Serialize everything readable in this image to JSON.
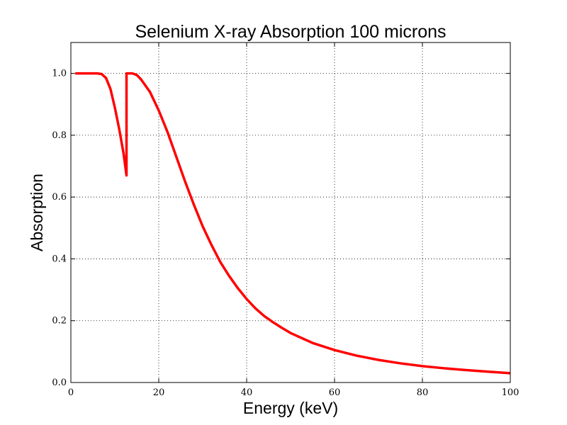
{
  "chart_data": {
    "type": "line",
    "title": "Selenium X-ray Absorption 100 microns",
    "xlabel": "Energy (keV)",
    "ylabel": "Absorption",
    "xlim": [
      0,
      100
    ],
    "ylim": [
      0,
      1.1
    ],
    "x_ticks": [
      "0",
      "20",
      "40",
      "60",
      "80",
      "100"
    ],
    "y_ticks": [
      "0.0",
      "0.2",
      "0.4",
      "0.6",
      "0.8",
      "1.0"
    ],
    "grid": true,
    "grid_style": "dotted",
    "legend": "none",
    "series": [
      {
        "color": "#ff0000",
        "points": [
          [
            1,
            1.0
          ],
          [
            4,
            1.0
          ],
          [
            6,
            1.0
          ],
          [
            7,
            0.998
          ],
          [
            8,
            0.985
          ],
          [
            9,
            0.95
          ],
          [
            10,
            0.89
          ],
          [
            11,
            0.82
          ],
          [
            12,
            0.74
          ],
          [
            12.66,
            0.67
          ],
          [
            12.66,
            1.0
          ],
          [
            14,
            1.0
          ],
          [
            15,
            0.995
          ],
          [
            16,
            0.98
          ],
          [
            18,
            0.94
          ],
          [
            20,
            0.88
          ],
          [
            22,
            0.81
          ],
          [
            24,
            0.73
          ],
          [
            26,
            0.65
          ],
          [
            28,
            0.575
          ],
          [
            30,
            0.505
          ],
          [
            32,
            0.445
          ],
          [
            34,
            0.39
          ],
          [
            36,
            0.345
          ],
          [
            38,
            0.305
          ],
          [
            40,
            0.27
          ],
          [
            42,
            0.24
          ],
          [
            44,
            0.215
          ],
          [
            46,
            0.195
          ],
          [
            48,
            0.177
          ],
          [
            50,
            0.16
          ],
          [
            55,
            0.128
          ],
          [
            60,
            0.105
          ],
          [
            65,
            0.087
          ],
          [
            70,
            0.073
          ],
          [
            75,
            0.062
          ],
          [
            80,
            0.053
          ],
          [
            85,
            0.046
          ],
          [
            90,
            0.04
          ],
          [
            95,
            0.035
          ],
          [
            100,
            0.03
          ]
        ]
      }
    ]
  }
}
